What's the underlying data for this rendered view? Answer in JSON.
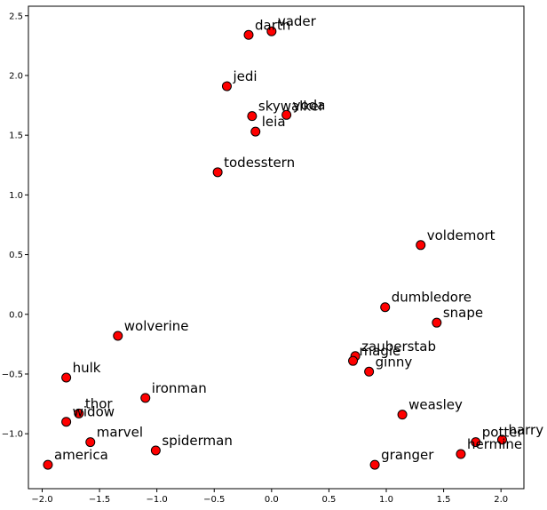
{
  "chart_data": {
    "type": "scatter",
    "title": "",
    "xlabel": "",
    "ylabel": "",
    "xlim": [
      -2.12,
      2.2
    ],
    "ylim": [
      -1.46,
      2.58
    ],
    "xticks": [
      -2.0,
      -1.5,
      -1.0,
      -0.5,
      0.0,
      0.5,
      1.0,
      1.5,
      2.0
    ],
    "xtick_labels": [
      "−2.0",
      "−1.5",
      "−1.0",
      "−0.5",
      "0.0",
      "0.5",
      "1.0",
      "1.5",
      "2.0"
    ],
    "yticks": [
      -1.0,
      -0.5,
      0.0,
      0.5,
      1.0,
      1.5,
      2.0,
      2.5
    ],
    "ytick_labels": [
      "−1.0",
      "−0.5",
      "0.0",
      "0.5",
      "1.0",
      "1.5",
      "2.0",
      "2.5"
    ],
    "grid": false,
    "legend": "none",
    "marker_color": "#ff0000",
    "marker_edge_color": "#000000",
    "points": [
      {
        "label": "darth",
        "x": -0.2,
        "y": 2.34
      },
      {
        "label": "vader",
        "x": 0.0,
        "y": 2.37
      },
      {
        "label": "jedi",
        "x": -0.39,
        "y": 1.91
      },
      {
        "label": "skywalker",
        "x": -0.17,
        "y": 1.66
      },
      {
        "label": "yoda",
        "x": 0.13,
        "y": 1.67
      },
      {
        "label": "leia",
        "x": -0.14,
        "y": 1.53
      },
      {
        "label": "todesstern",
        "x": -0.47,
        "y": 1.19
      },
      {
        "label": "voldemort",
        "x": 1.3,
        "y": 0.58
      },
      {
        "label": "dumbledore",
        "x": 0.99,
        "y": 0.06
      },
      {
        "label": "snape",
        "x": 1.44,
        "y": -0.07
      },
      {
        "label": "zauberstab",
        "x": 0.73,
        "y": -0.35
      },
      {
        "label": "magie",
        "x": 0.71,
        "y": -0.39
      },
      {
        "label": "ginny",
        "x": 0.85,
        "y": -0.48
      },
      {
        "label": "weasley",
        "x": 1.14,
        "y": -0.84
      },
      {
        "label": "potter",
        "x": 1.78,
        "y": -1.07
      },
      {
        "label": "harry",
        "x": 2.01,
        "y": -1.05
      },
      {
        "label": "hermine",
        "x": 1.65,
        "y": -1.17
      },
      {
        "label": "granger",
        "x": 0.9,
        "y": -1.26
      },
      {
        "label": "wolverine",
        "x": -1.34,
        "y": -0.18
      },
      {
        "label": "hulk",
        "x": -1.79,
        "y": -0.53
      },
      {
        "label": "ironman",
        "x": -1.1,
        "y": -0.7
      },
      {
        "label": "thor",
        "x": -1.68,
        "y": -0.83
      },
      {
        "label": "widow",
        "x": -1.79,
        "y": -0.9
      },
      {
        "label": "marvel",
        "x": -1.58,
        "y": -1.07
      },
      {
        "label": "spiderman",
        "x": -1.01,
        "y": -1.14
      },
      {
        "label": "america",
        "x": -1.95,
        "y": -1.26
      }
    ]
  }
}
